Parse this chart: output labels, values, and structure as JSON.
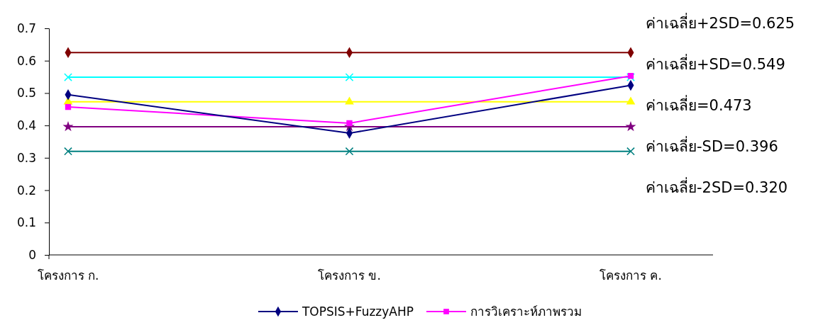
{
  "chart_data": {
    "type": "line",
    "categories": [
      "โครงการ ก.",
      "โครงการ ข.",
      "โครงการ ค."
    ],
    "series": [
      {
        "name": "TOPSIS+FuzzyAHP",
        "color": "#000080",
        "marker": "diamond",
        "values": [
          0.495,
          0.376,
          0.524
        ]
      },
      {
        "name": "การวิเคราะห์ภาพรวม",
        "color": "#ff00ff",
        "marker": "square",
        "values": [
          0.457,
          0.407,
          0.553
        ]
      },
      {
        "color": "#800000",
        "marker": "diamond",
        "values": [
          0.625,
          0.625,
          0.625
        ]
      },
      {
        "color": "#00ffff",
        "marker": "cross",
        "values": [
          0.549,
          0.549,
          0.549
        ]
      },
      {
        "color": "#ffff00",
        "marker": "triangle",
        "values": [
          0.473,
          0.473,
          0.473
        ]
      },
      {
        "color": "#800080",
        "marker": "star",
        "values": [
          0.396,
          0.396,
          0.396
        ]
      },
      {
        "color": "#008080",
        "marker": "cross",
        "values": [
          0.32,
          0.32,
          0.32
        ]
      }
    ],
    "ylim": [
      0,
      0.7
    ],
    "yticks": [
      0,
      0.1,
      0.2,
      0.3,
      0.4,
      0.5,
      0.6,
      0.7
    ],
    "grid": false,
    "legend": "bottom",
    "line_style": "solid",
    "annotations": [
      "ค่าเฉลี่ย+2SD=0.625",
      "ค่าเฉลี่ย+SD=0.549",
      "ค่าเฉลี่ย=0.473",
      "ค่าเฉลี่ย-SD=0.396",
      "ค่าเฉลี่ย-2SD=0.320"
    ]
  }
}
